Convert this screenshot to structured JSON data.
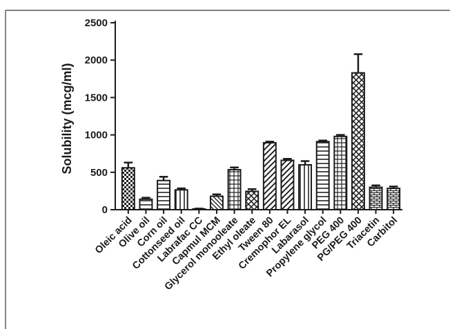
{
  "chart_data": {
    "type": "bar",
    "title": "",
    "xlabel": "",
    "ylabel": "Solubility (mcg/ml)",
    "ylim": [
      0,
      2500
    ],
    "yticks": [
      0,
      500,
      1000,
      1500,
      2000,
      2500
    ],
    "grid": false,
    "legend": "none",
    "categories": [
      "Oleic acid",
      "Olive oil",
      "Corn oil",
      "Cottonseed oil",
      "Labrafac CC",
      "Capmul MCM",
      "Glycerol monooleate",
      "Ethyl oleate",
      "Tween 80",
      "Cremophor EL",
      "Labarasol",
      "Propylene glycol",
      "PEG 400",
      "PG/PEG 400",
      "Triacetin",
      "Carbitol"
    ],
    "values": [
      560,
      140,
      390,
      265,
      10,
      180,
      535,
      245,
      895,
      660,
      600,
      910,
      980,
      1830,
      300,
      285
    ],
    "errors": [
      70,
      20,
      50,
      20,
      5,
      25,
      30,
      30,
      15,
      20,
      50,
      15,
      20,
      250,
      25,
      25
    ],
    "patterns": [
      "checker",
      "horizontal",
      "horizontal",
      "vertical",
      "solid",
      "diagonal-down",
      "grid",
      "crosshatch",
      "diagonal-up",
      "diagonal-up",
      "vertical",
      "horizontal",
      "grid",
      "crosshatch",
      "brick",
      "brick"
    ],
    "bar_color": "#ffffff",
    "stroke_color": "#1a1a1a"
  }
}
